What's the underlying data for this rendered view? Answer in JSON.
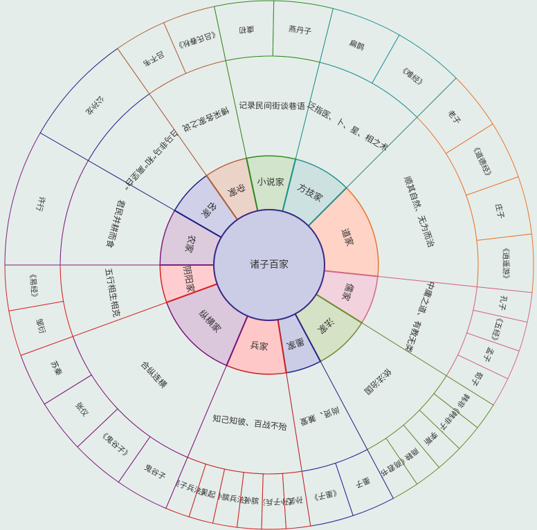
{
  "center": {
    "label": "诸子百家",
    "color": "#cbcde6",
    "stroke": "#3b2a8a"
  },
  "schools": [
    {
      "name": "道家",
      "color": "#e8742a",
      "fill": "#ffd4c6",
      "desc": "顺其自然、无为而治",
      "items": [
        "老子",
        "《道德经》",
        "庄子",
        "《逍遥游》"
      ]
    },
    {
      "name": "儒家",
      "color": "#d2678c",
      "fill": "#f2d2dc",
      "desc": "中庸之道、有教无类",
      "items": [
        "孔子",
        "《五经》",
        "孟子",
        "荀子"
      ]
    },
    {
      "name": "法家",
      "color": "#6c8b2e",
      "fill": "#d5e2c5",
      "desc": "依法治国",
      "items": [
        "韩非",
        "《韩非子》",
        "李斯",
        "商鞅",
        "《商君书》"
      ]
    },
    {
      "name": "墨家",
      "color": "#24248e",
      "fill": "#cbcde6",
      "desc": "尚贤、兼爱",
      "items": [
        "墨子",
        "《墨子》"
      ]
    },
    {
      "name": "兵家",
      "color": "#c91e1e",
      "fill": "#ffc8c8",
      "desc": "知己知彼、百战不殆",
      "items": [
        "孙武",
        "《孙子兵法》",
        "孙膑",
        "《孙膑兵法》",
        "吴起",
        "《吴子兵法》"
      ]
    },
    {
      "name": "纵横家",
      "color": "#7b137b",
      "fill": "#dcc8dc",
      "desc": "合纵连横",
      "items": [
        "鬼谷子",
        "《鬼谷子》",
        "张仪",
        "苏秦"
      ]
    },
    {
      "name": "阴阳家",
      "color": "#d92020",
      "fill": "#ffcdd0",
      "desc": "五行相生相克",
      "items": [
        "邹衍",
        "《易经》"
      ]
    },
    {
      "name": "农家",
      "color": "#7f1d7f",
      "fill": "#dccbdc",
      "desc": "君民并耕而食",
      "items": [
        "许行"
      ]
    },
    {
      "name": "名家",
      "color": "#1c2086",
      "fill": "#d0d0e8",
      "desc": "“白马非马”和“离坚白”",
      "items": [
        "公孙龙"
      ]
    },
    {
      "name": "杂家",
      "color": "#b0603a",
      "fill": "#ecd3c8",
      "desc": "博采各家之说",
      "items": [
        "吕不韦",
        "《吕氏春秋》"
      ]
    },
    {
      "name": "小说家",
      "color": "#2c8a1e",
      "fill": "#d2e4cc",
      "desc": "记录民间街谈巷语",
      "items": [
        "虞初",
        "燕丹子"
      ]
    },
    {
      "name": "方技家",
      "color": "#1c9190",
      "fill": "#cde2e0",
      "desc": "泛指医、卜、星、相之术",
      "items": [
        "扁鹊",
        "《难经》"
      ]
    }
  ],
  "item_border": "#1a1a1a"
}
